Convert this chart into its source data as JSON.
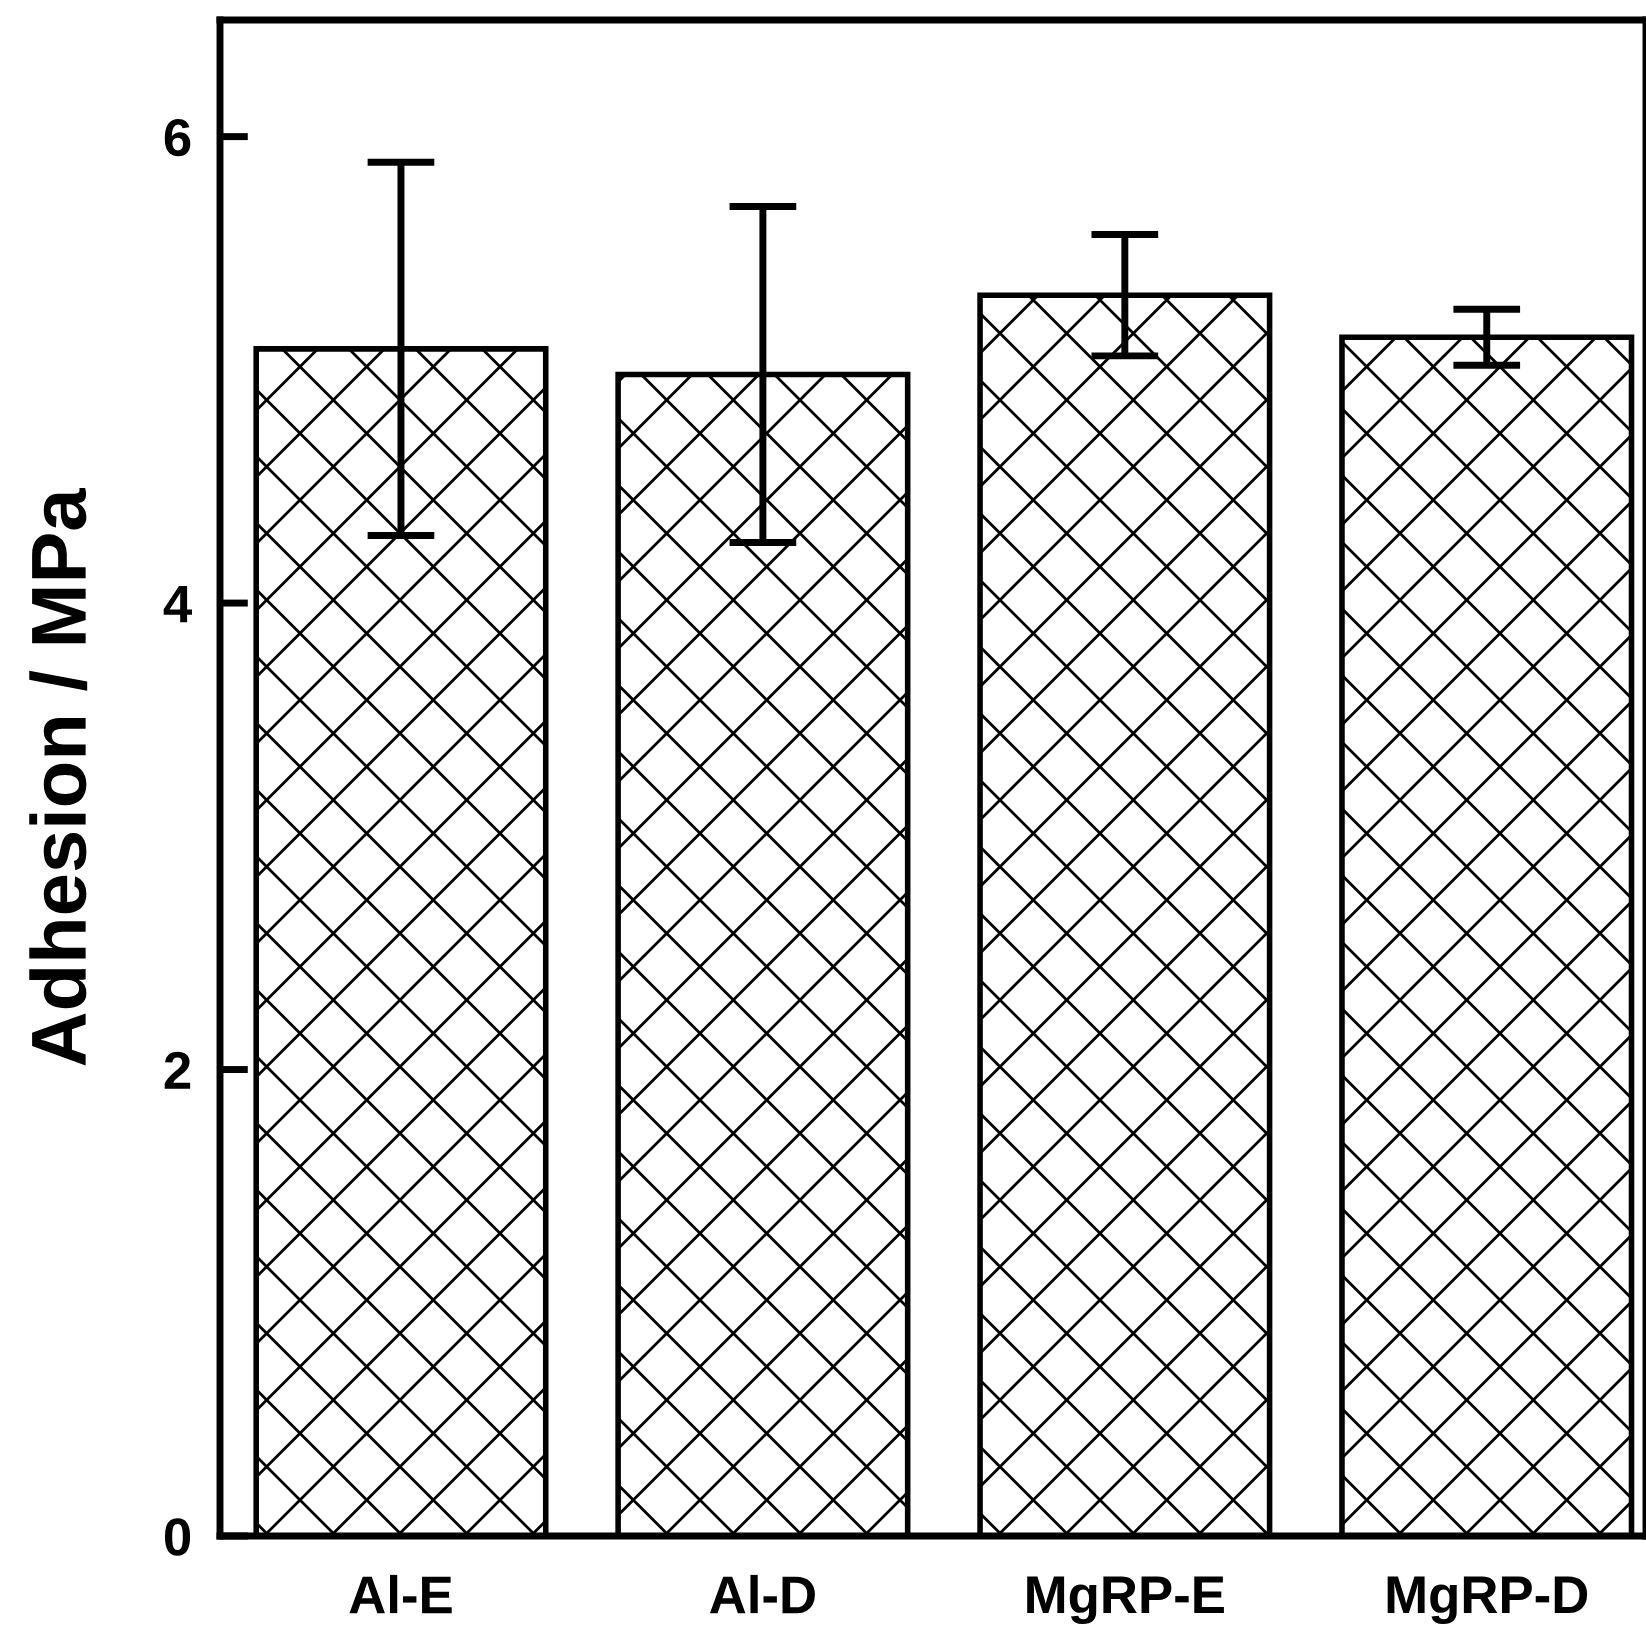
{
  "chart_data": {
    "type": "bar",
    "ylabel": "Adhesion / MPa",
    "categories": [
      "Al-E",
      "Al-D",
      "MgRP-E",
      "MgRP-D"
    ],
    "values": [
      5.09,
      4.98,
      5.32,
      5.14
    ],
    "errors": [
      0.8,
      0.72,
      0.26,
      0.12
    ],
    "color": "#000000",
    "ylim": [
      0,
      6.5
    ],
    "yticks": [
      0,
      2,
      4,
      6
    ],
    "grid": false,
    "legend": false
  }
}
